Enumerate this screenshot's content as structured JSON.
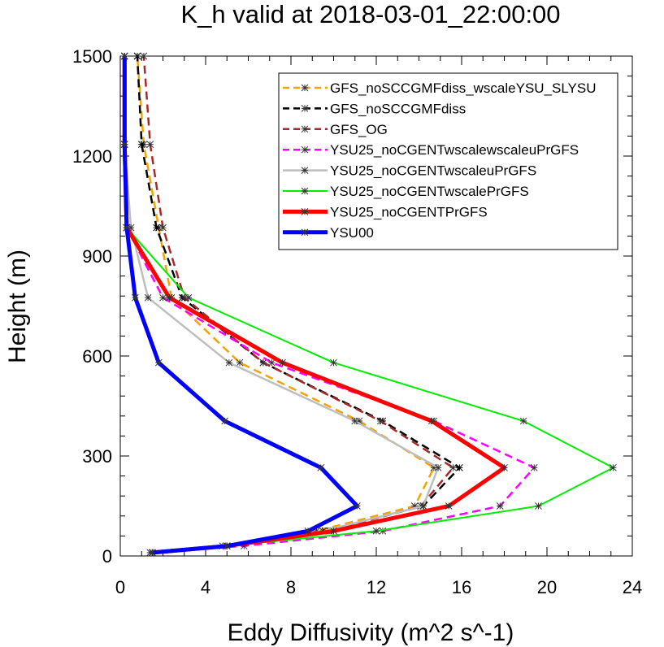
{
  "chart_data": {
    "type": "line",
    "title": "K_h valid at 2018-03-01_22:00:00",
    "xlabel": "Eddy Diffusivity (m^2 s^-1)",
    "ylabel": "Height (m)",
    "xlim": [
      0,
      24
    ],
    "ylim": [
      0,
      1500
    ],
    "xticks": [
      0,
      4,
      8,
      12,
      16,
      20,
      24
    ],
    "yticks": [
      0,
      300,
      600,
      900,
      1200,
      1500
    ],
    "legend_placement": "top-right",
    "grid": false,
    "series": [
      {
        "name": "GFS_noSCCGMFdiss_wscaleYSU_SLYSU",
        "color": "#f5a300",
        "dash": "dash",
        "width": 2.5,
        "x": [
          1.5,
          4.8,
          9.2,
          13.8,
          14.7,
          11.2,
          5.6,
          2.4,
          1.8,
          1.1,
          0.8
        ],
        "y": [
          10,
          30,
          75,
          150,
          265,
          405,
          580,
          775,
          985,
          1235,
          1500
        ]
      },
      {
        "name": "GFS_noSCCGMFdiss",
        "color": "#000000",
        "dash": "dash",
        "width": 2.5,
        "x": [
          1.5,
          5.0,
          9.6,
          14.2,
          15.9,
          12.3,
          6.7,
          2.9,
          1.7,
          1.0,
          0.8
        ],
        "y": [
          10,
          30,
          75,
          150,
          265,
          405,
          580,
          775,
          985,
          1235,
          1500
        ]
      },
      {
        "name": "GFS_OG",
        "color": "#a52a2a",
        "dash": "dash",
        "width": 2.5,
        "x": [
          1.5,
          5.0,
          9.8,
          14.1,
          15.6,
          12.2,
          6.7,
          3.0,
          2.0,
          1.4,
          1.1
        ],
        "y": [
          10,
          30,
          75,
          150,
          265,
          405,
          580,
          775,
          985,
          1235,
          1500
        ]
      },
      {
        "name": "YSU25_noCGENTwscalewscaleuPrGFS",
        "color": "#ff00ff",
        "dash": "dash",
        "width": 2.5,
        "x": [
          1.4,
          5.8,
          12.3,
          17.8,
          19.4,
          14.7,
          7.1,
          2.0,
          0.3,
          0.2,
          0.2
        ],
        "y": [
          10,
          30,
          75,
          150,
          265,
          405,
          580,
          775,
          985,
          1235,
          1500
        ]
      },
      {
        "name": "YSU25_noCGENTwscaleuPrGFS",
        "color": "#bebebe",
        "dash": "solid",
        "width": 2.5,
        "x": [
          1.5,
          5.0,
          9.5,
          14.2,
          14.9,
          11.0,
          5.1,
          1.3,
          0.5,
          0.2,
          0.2
        ],
        "y": [
          10,
          30,
          75,
          150,
          265,
          405,
          580,
          775,
          985,
          1235,
          1500
        ]
      },
      {
        "name": "YSU25_noCGENTwscalePrGFS",
        "color": "#00ee00",
        "dash": "solid",
        "width": 2,
        "x": [
          1.5,
          5.0,
          12.0,
          19.6,
          23.1,
          18.9,
          10.0,
          3.2,
          0.3,
          0.2,
          0.2
        ],
        "y": [
          10,
          30,
          75,
          150,
          265,
          405,
          580,
          775,
          985,
          1235,
          1500
        ]
      },
      {
        "name": "YSU25_noCGENTPrGFS",
        "color": "#ff0000",
        "dash": "solid",
        "width": 5,
        "x": [
          1.5,
          5.0,
          10.0,
          15.4,
          18.0,
          14.6,
          7.6,
          2.3,
          0.3,
          0.2,
          0.2
        ],
        "y": [
          10,
          30,
          75,
          150,
          265,
          405,
          580,
          775,
          985,
          1235,
          1500
        ]
      },
      {
        "name": "YSU00",
        "color": "#0000ff",
        "dash": "solid",
        "width": 5,
        "x": [
          1.5,
          5.0,
          8.8,
          11.1,
          9.4,
          4.9,
          1.8,
          0.7,
          0.3,
          0.2,
          0.2
        ],
        "y": [
          10,
          30,
          75,
          150,
          265,
          405,
          580,
          775,
          985,
          1235,
          1500
        ]
      }
    ]
  }
}
